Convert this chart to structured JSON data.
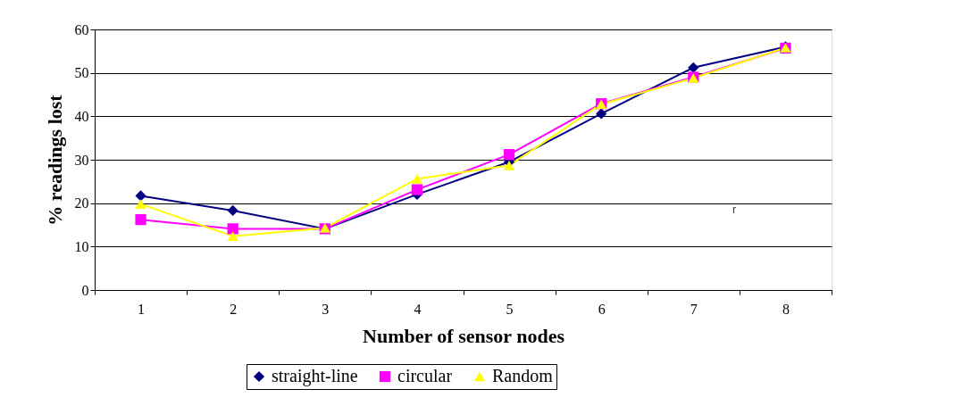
{
  "chart_data": {
    "type": "line",
    "xlabel": "Number of sensor nodes",
    "ylabel": "% readings lost",
    "categories": [
      "1",
      "2",
      "3",
      "4",
      "5",
      "6",
      "7",
      "8"
    ],
    "series": [
      {
        "name": "straight-line",
        "color": "#000080",
        "marker": "diamond",
        "values": [
          21.7,
          18.3,
          14.1,
          22,
          29.5,
          40.6,
          51.2,
          56
        ]
      },
      {
        "name": "circular",
        "color": "#ff00ff",
        "marker": "square",
        "values": [
          16.2,
          14.1,
          14.1,
          23.1,
          31.2,
          42.9,
          49,
          55.7
        ]
      },
      {
        "name": "Random",
        "color": "#ffff00",
        "marker": "triangle",
        "values": [
          19.8,
          12.4,
          14.3,
          25.6,
          28.7,
          42.8,
          48.8,
          55.8
        ]
      }
    ],
    "ylim": [
      0,
      60
    ],
    "yticks": [
      0,
      10,
      20,
      30,
      40,
      50,
      60
    ],
    "grid": "y",
    "legend": "bottom",
    "line_style": "solid",
    "annotations": [
      "r"
    ]
  }
}
